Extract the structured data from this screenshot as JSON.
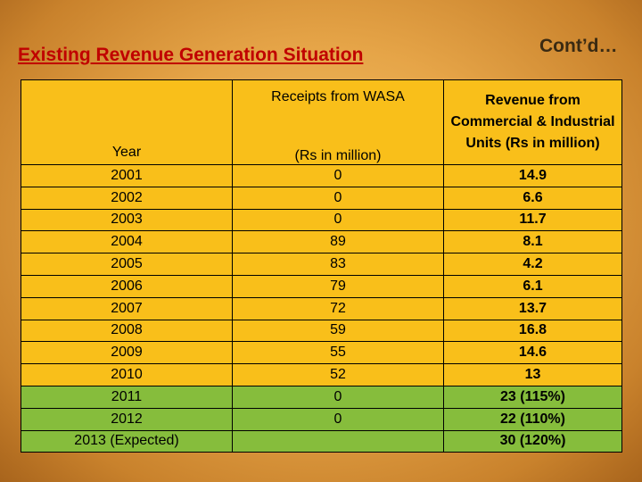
{
  "slide": {
    "title": "Existing Revenue Generation Situation",
    "contd": "Cont’d…"
  },
  "table": {
    "headers": {
      "year": "Year",
      "wasa_label": "Receipts from WASA",
      "wasa_unit": "(Rs in million)",
      "revenue": "Revenue from Commercial & Industrial Units (Rs in million)"
    },
    "rows": [
      {
        "year": "2001",
        "wasa": "0",
        "revenue": "14.9"
      },
      {
        "year": "2002",
        "wasa": "0",
        "revenue": "6.6"
      },
      {
        "year": "2003",
        "wasa": "0",
        "revenue": "11.7"
      },
      {
        "year": "2004",
        "wasa": "89",
        "revenue": "8.1"
      },
      {
        "year": "2005",
        "wasa": "83",
        "revenue": "4.2"
      },
      {
        "year": "2006",
        "wasa": "79",
        "revenue": "6.1"
      },
      {
        "year": "2007",
        "wasa": "72",
        "revenue": "13.7"
      },
      {
        "year": "2008",
        "wasa": "59",
        "revenue": "16.8"
      },
      {
        "year": "2009",
        "wasa": "55",
        "revenue": "14.6"
      },
      {
        "year": "2010",
        "wasa": "52",
        "revenue": "13"
      },
      {
        "year": "2011",
        "wasa": "0",
        "revenue": "23 (115%)"
      },
      {
        "year": "2012",
        "wasa": "0",
        "revenue": "22 (110%)"
      },
      {
        "year": "2013 (Expected)",
        "wasa": "",
        "revenue": "30 (120%)"
      }
    ]
  },
  "colors": {
    "title": "#c00000",
    "table_fill": "#f9bf1a",
    "highlight_fill": "#86bd3c"
  }
}
